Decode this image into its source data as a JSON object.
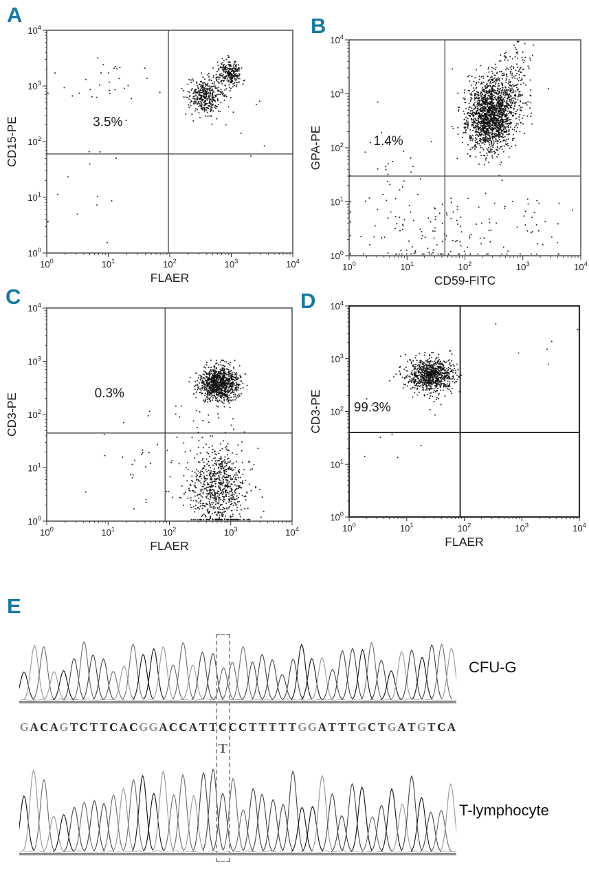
{
  "colors": {
    "panel_letter": "#1878a0",
    "point": "#0c0c0c",
    "frame": "#2f2f2f",
    "annotation_text": "#111111"
  },
  "chart_data": [
    {
      "type": "scatter",
      "panel": "A",
      "xlabel": "FLAER",
      "ylabel": "CD15-PE",
      "xscale": "log",
      "yscale": "log",
      "xlim": [
        1,
        10000
      ],
      "ylim": [
        1,
        10000
      ],
      "tick_exponents": [
        0,
        1,
        2,
        3,
        4
      ],
      "tick_labels": [
        "10^0",
        "10^1",
        "10^2",
        "10^3",
        "10^4"
      ],
      "quadrant": {
        "x": 95,
        "y": 60
      },
      "annotation": {
        "text": "3.5%",
        "lx": 0.75,
        "ly": 2.28
      },
      "clusters": [
        {
          "label": "FLAER-positive granulocytes lower",
          "cx": 2.58,
          "cy": 2.83,
          "sx": 0.14,
          "sy": 0.16,
          "n": 380
        },
        {
          "label": "FLAER-positive granulocytes upper",
          "cx": 2.97,
          "cy": 3.22,
          "sx": 0.1,
          "sy": 0.11,
          "n": 260
        },
        {
          "label": "FLAER-negative PNH events",
          "cx": 0.85,
          "cy": 2.95,
          "sx": 0.45,
          "sy": 0.28,
          "n": 30
        },
        {
          "label": "low debris",
          "cx": 0.9,
          "cy": 0.9,
          "sx": 0.45,
          "sy": 0.55,
          "n": 12
        },
        {
          "label": "stray events",
          "cx": 3.3,
          "cy": 2.3,
          "sx": 0.35,
          "sy": 0.7,
          "n": 8
        }
      ]
    },
    {
      "type": "scatter",
      "panel": "B",
      "xlabel": "CD59-FITC",
      "ylabel": "GPA-PE",
      "xscale": "log",
      "yscale": "log",
      "xlim": [
        1,
        10000
      ],
      "ylim": [
        1,
        10000
      ],
      "tick_exponents": [
        0,
        1,
        2,
        3,
        4
      ],
      "tick_labels": [
        "10^0",
        "10^1",
        "10^2",
        "10^3",
        "10^4"
      ],
      "quadrant": {
        "x": 45,
        "y": 30
      },
      "annotation": {
        "text": "1.4%",
        "lx": 0.42,
        "ly": 2.05
      },
      "clusters": [
        {
          "label": "CD59-positive erythrocytes core",
          "cx": 2.42,
          "cy": 2.55,
          "sx": 0.2,
          "sy": 0.3,
          "n": 1400
        },
        {
          "label": "CD59-positive upper tail",
          "cx": 2.62,
          "cy": 2.95,
          "sx": 0.22,
          "sy": 0.3,
          "n": 420
        },
        {
          "label": "high GPA tail",
          "cx": 2.85,
          "cy": 3.5,
          "sx": 0.18,
          "sy": 0.22,
          "n": 60
        },
        {
          "label": "GPA-negative bottom band",
          "cx": 1.6,
          "cy": 0.35,
          "sx": 0.75,
          "sy": 0.4,
          "n": 140
        },
        {
          "label": "left sparse",
          "cx": 0.9,
          "cy": 1.5,
          "sx": 0.45,
          "sy": 0.5,
          "n": 28
        },
        {
          "label": "bottom right sparse",
          "cx": 3.2,
          "cy": 0.6,
          "sx": 0.35,
          "sy": 0.5,
          "n": 25
        }
      ]
    },
    {
      "type": "scatter",
      "panel": "C",
      "xlabel": "FLAER",
      "ylabel": "CD3-PE",
      "xscale": "log",
      "yscale": "log",
      "xlim": [
        1,
        10000
      ],
      "ylim": [
        1,
        10000
      ],
      "tick_exponents": [
        0,
        1,
        2,
        3,
        4
      ],
      "tick_labels": [
        "10^0",
        "10^1",
        "10^2",
        "10^3",
        "10^4"
      ],
      "quadrant": {
        "x": 85,
        "y": 45
      },
      "annotation": {
        "text": "0.3%",
        "lx": 0.78,
        "ly": 2.32
      },
      "clusters": [
        {
          "label": "CD3+ FLAER+ T lymphocytes",
          "cx": 2.82,
          "cy": 2.58,
          "sx": 0.16,
          "sy": 0.16,
          "n": 950
        },
        {
          "label": "CD3- FLAER+ events",
          "cx": 2.78,
          "cy": 0.6,
          "sx": 0.24,
          "sy": 0.42,
          "n": 750
        },
        {
          "label": "left sparse",
          "cx": 1.7,
          "cy": 0.9,
          "sx": 0.55,
          "sy": 0.45,
          "n": 30
        },
        {
          "label": "mid sparse",
          "cx": 2.2,
          "cy": 1.9,
          "sx": 0.4,
          "sy": 0.4,
          "n": 15
        }
      ]
    },
    {
      "type": "scatter",
      "panel": "D",
      "thick": true,
      "xlabel": "FLAER",
      "ylabel": "CD3-PE",
      "xscale": "log",
      "yscale": "log",
      "xlim": [
        1,
        10000
      ],
      "ylim": [
        1,
        10000
      ],
      "tick_exponents": [
        0,
        1,
        2,
        3,
        4
      ],
      "tick_labels": [
        "10^0",
        "10^1",
        "10^2",
        "10^3",
        "10^4"
      ],
      "quadrant": {
        "x": 85,
        "y": 40
      },
      "annotation": {
        "text": "99.3%",
        "lx": 0.08,
        "ly": 2.0
      },
      "clusters": [
        {
          "label": "CD3+ FLAER-negative T lymphocytes",
          "cx": 1.42,
          "cy": 2.68,
          "sx": 0.2,
          "sy": 0.16,
          "n": 850
        },
        {
          "label": "sparse low",
          "cx": 1.0,
          "cy": 1.4,
          "sx": 0.5,
          "sy": 0.5,
          "n": 8
        },
        {
          "label": "sparse high right",
          "cx": 3.1,
          "cy": 3.4,
          "sx": 0.5,
          "sy": 0.35,
          "n": 6
        }
      ]
    },
    {
      "type": "chromatogram",
      "panel": "E",
      "sequence": "GACAGTCTTCACGGACCATTCCCTTTTTGGATTTGCTGATGTCA",
      "variant": {
        "index": 20,
        "ref": "C",
        "alt": "T"
      },
      "traces": [
        {
          "label": "CFU-G"
        },
        {
          "label": "T-lymphocyte"
        }
      ],
      "trace_colors": {
        "A": "#9a9a9a",
        "C": "#6f6f6f",
        "G": "#161616",
        "T": "#4a4a4a"
      },
      "letter_colors": {
        "A": "#2e2e2e",
        "C": "#1f1f1f",
        "G": "#8e8e8e",
        "T": "#3c3c3c"
      }
    }
  ]
}
